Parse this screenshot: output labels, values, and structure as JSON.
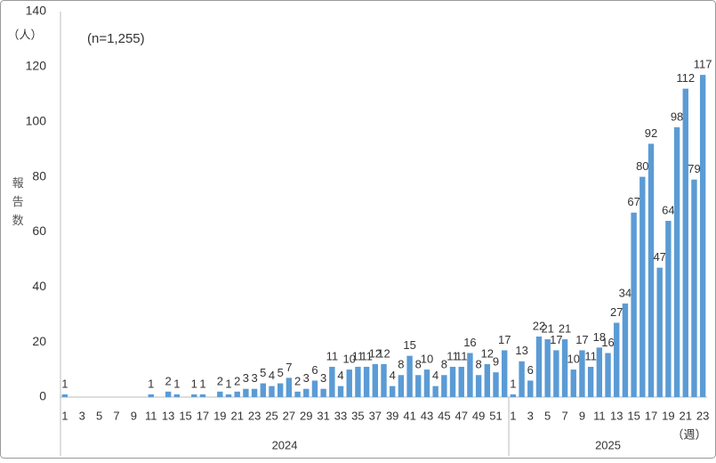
{
  "chart_data": {
    "type": "bar",
    "y_unit": "（人）",
    "note": "(n=1,255)",
    "y_label": "報告数",
    "x_unit": "（週）",
    "color": "#5b9bd5",
    "ylim": [
      0,
      140
    ],
    "yticks": [
      0,
      20,
      40,
      60,
      80,
      100,
      120,
      140
    ],
    "grid": false,
    "groups": [
      {
        "name": "2024",
        "categories": [
          "1",
          null,
          "3",
          null,
          "5",
          null,
          "7",
          null,
          "9",
          null,
          "11",
          null,
          "13",
          null,
          "15",
          null,
          "17",
          null,
          "19",
          null,
          "21",
          null,
          "23",
          null,
          "25",
          null,
          "27",
          null,
          "29",
          null,
          "31",
          null,
          "33",
          null,
          "35",
          null,
          "37",
          null,
          "39",
          null,
          "41",
          null,
          "43",
          null,
          "45",
          null,
          "47",
          null,
          "49",
          null,
          "51",
          null
        ],
        "values": [
          1,
          0,
          0,
          0,
          0,
          0,
          0,
          0,
          0,
          0,
          1,
          0,
          2,
          1,
          0,
          1,
          1,
          0,
          2,
          1,
          2,
          3,
          3,
          5,
          4,
          5,
          7,
          2,
          3,
          6,
          3,
          11,
          4,
          10,
          11,
          11,
          12,
          12,
          4,
          8,
          15,
          8,
          10,
          4,
          8,
          11,
          11,
          16,
          8,
          12,
          9,
          17
        ]
      },
      {
        "name": "2025",
        "categories": [
          "1",
          null,
          "3",
          null,
          "5",
          null,
          "7",
          null,
          "9",
          null,
          "11",
          null,
          "13",
          null,
          "15",
          null,
          "17",
          null,
          "19",
          null,
          "21",
          null,
          "23"
        ],
        "values": [
          1,
          13,
          6,
          22,
          21,
          17,
          21,
          10,
          17,
          11,
          18,
          16,
          27,
          34,
          67,
          80,
          92,
          47,
          64,
          98,
          112,
          79,
          117
        ]
      }
    ]
  }
}
